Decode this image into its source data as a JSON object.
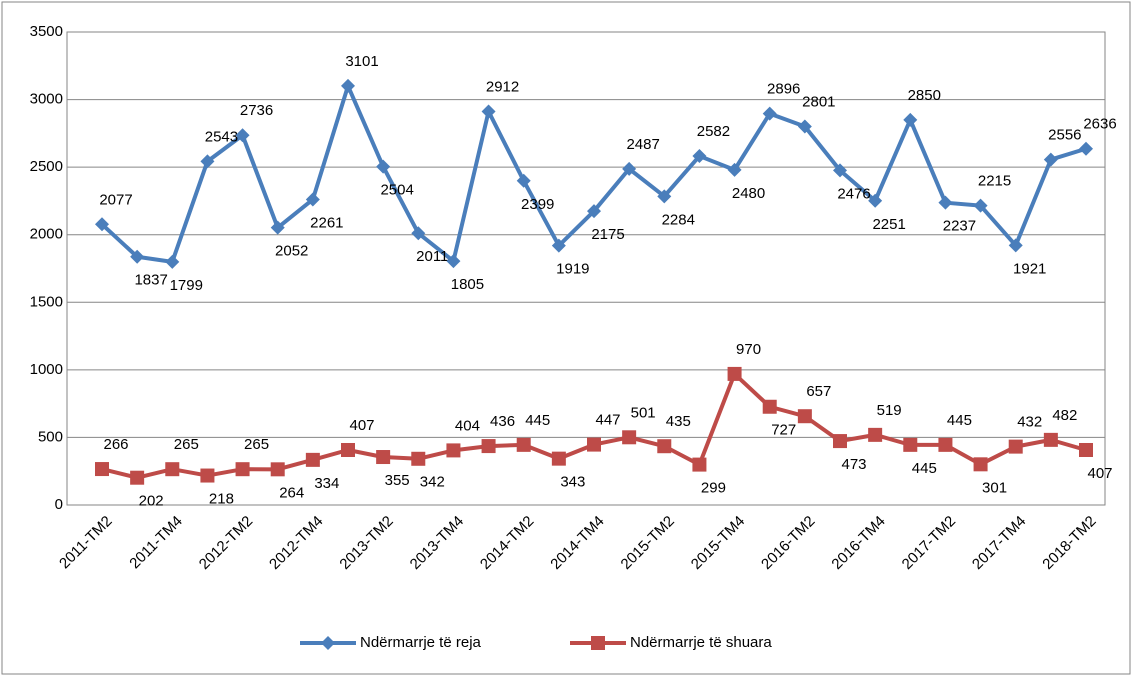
{
  "chart_data": {
    "type": "line",
    "categories": [
      "2011-TM2",
      null,
      "2011-TM4",
      null,
      "2012-TM2",
      null,
      "2012-TM4",
      null,
      "2013-TM2",
      null,
      "2013-TM4",
      null,
      "2014-TM2",
      null,
      "2014-TM4",
      null,
      "2015-TM2",
      null,
      "2015-TM4",
      null,
      "2016-TM2",
      null,
      "2016-TM4",
      null,
      "2017-TM2",
      null,
      "2017-TM4",
      null,
      "2018-TM2"
    ],
    "series": [
      {
        "name": "Ndërmarrje të reja",
        "color": "#4a7ebb",
        "marker": "diamond",
        "values": [
          2077,
          1837,
          1799,
          2543,
          2736,
          2052,
          2261,
          3101,
          2504,
          2011,
          1805,
          2912,
          2399,
          1919,
          2175,
          2487,
          2284,
          2582,
          2480,
          2896,
          2801,
          2476,
          2251,
          2850,
          2237,
          2215,
          1921,
          2556,
          2636
        ]
      },
      {
        "name": "Ndërmarrje të shuara",
        "color": "#be4b48",
        "marker": "square",
        "values": [
          266,
          202,
          265,
          218,
          265,
          264,
          334,
          407,
          355,
          342,
          404,
          436,
          445,
          343,
          447,
          501,
          435,
          299,
          970,
          727,
          657,
          473,
          519,
          445,
          445,
          301,
          432,
          482,
          407
        ]
      }
    ],
    "ylim": [
      0,
      3500
    ],
    "yticks": [
      0,
      500,
      1000,
      1500,
      2000,
      2500,
      3000,
      3500
    ],
    "grid": true,
    "legend": "bottom"
  }
}
